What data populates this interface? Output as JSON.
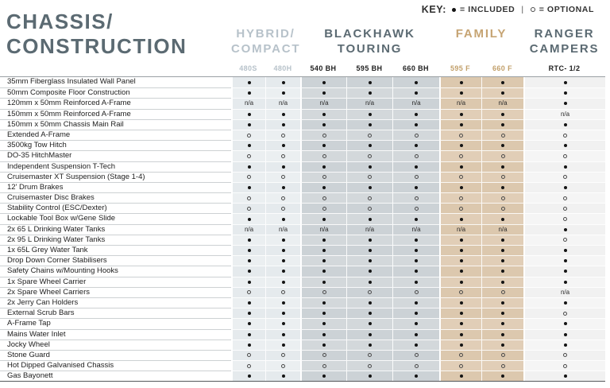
{
  "title": {
    "line1": "CHASSIS/",
    "line2": "CONSTRUCTION"
  },
  "key": {
    "label": "KEY:",
    "included_symbol": "●",
    "included_text": "= INCLUDED",
    "divider": "|",
    "optional_symbol": "○",
    "optional_text": "= OPTIONAL"
  },
  "colors": {
    "accent_slate": "#5b6a72",
    "accent_light_blue": "#b7c2ca",
    "accent_tan": "#c6a473",
    "model_dark": "#1f1f1f",
    "band_hybrid": "#e5eaed",
    "band_blackhawk": "#ccd2d6",
    "band_family": "#dcc8ae",
    "band_ranger": "#f1f1f1"
  },
  "groups": [
    {
      "id": "hybrid",
      "lines": [
        "HYBRID/",
        "COMPACT"
      ],
      "color": "#b7c2ca",
      "model_color": "#b7c2ca",
      "models": [
        "480S",
        "480H"
      ]
    },
    {
      "id": "blackhawk",
      "lines": [
        "BLACKHAWK",
        "TOURING"
      ],
      "color": "#5b6a72",
      "model_color": "#1f1f1f",
      "models": [
        "540 BH",
        "595 BH",
        "660 BH"
      ]
    },
    {
      "id": "family",
      "lines": [
        "FAMILY"
      ],
      "color": "#c6a473",
      "model_color": "#c2a06b",
      "models": [
        "595 F",
        "660 F"
      ]
    },
    {
      "id": "ranger",
      "lines": [
        "RANGER",
        "CAMPERS"
      ],
      "color": "#5b6a72",
      "model_color": "#1f1f1f",
      "models": [
        "RTC- 1/2"
      ]
    }
  ],
  "value_legend": {
    "I": "included",
    "O": "optional",
    "NA": "n/a"
  },
  "rows": [
    {
      "label": "35mm Fiberglass Insulated Wall Panel",
      "values": [
        "I",
        "I",
        "I",
        "I",
        "I",
        "I",
        "I",
        "I"
      ]
    },
    {
      "label": "50mm Composite Floor Construction",
      "values": [
        "I",
        "I",
        "I",
        "I",
        "I",
        "I",
        "I",
        "I"
      ]
    },
    {
      "label": "120mm x 50mm Reinforced A-Frame",
      "values": [
        "NA",
        "NA",
        "NA",
        "NA",
        "NA",
        "NA",
        "NA",
        "I"
      ]
    },
    {
      "label": "150mm x 50mm Reinforced A-Frame",
      "values": [
        "I",
        "I",
        "I",
        "I",
        "I",
        "I",
        "I",
        "NA"
      ]
    },
    {
      "label": "150mm x 50mm Chassis Main Rail",
      "values": [
        "I",
        "I",
        "I",
        "I",
        "I",
        "I",
        "I",
        "I"
      ]
    },
    {
      "label": "Extended A-Frame",
      "values": [
        "O",
        "O",
        "O",
        "O",
        "O",
        "O",
        "O",
        "O"
      ]
    },
    {
      "label": "3500kg Tow Hitch",
      "values": [
        "I",
        "I",
        "I",
        "I",
        "I",
        "I",
        "I",
        "I"
      ]
    },
    {
      "label": "DO-35 HitchMaster",
      "values": [
        "O",
        "O",
        "O",
        "O",
        "O",
        "O",
        "O",
        "O"
      ]
    },
    {
      "label": "Independent Suspension T-Tech",
      "values": [
        "I",
        "I",
        "I",
        "I",
        "I",
        "I",
        "I",
        "I"
      ]
    },
    {
      "label": "Cruisemaster XT Suspension (Stage 1-4)",
      "values": [
        "O",
        "O",
        "O",
        "O",
        "O",
        "O",
        "O",
        "O"
      ]
    },
    {
      "label": "12' Drum Brakes",
      "values": [
        "I",
        "I",
        "I",
        "I",
        "I",
        "I",
        "I",
        "I"
      ]
    },
    {
      "label": "Cruisemaster Disc Brakes",
      "values": [
        "O",
        "O",
        "O",
        "O",
        "O",
        "O",
        "O",
        "O"
      ]
    },
    {
      "label": "Stability Control (ESC/Dexter)",
      "values": [
        "O",
        "O",
        "O",
        "O",
        "O",
        "O",
        "O",
        "O"
      ]
    },
    {
      "label": "Lockable Tool Box w/Gene Slide",
      "values": [
        "I",
        "I",
        "I",
        "I",
        "I",
        "I",
        "I",
        "O"
      ]
    },
    {
      "label": "2x 65 L Drinking Water Tanks",
      "values": [
        "NA",
        "NA",
        "NA",
        "NA",
        "NA",
        "NA",
        "NA",
        "I"
      ]
    },
    {
      "label": "2x 95 L Drinking Water Tanks",
      "values": [
        "I",
        "I",
        "I",
        "I",
        "I",
        "I",
        "I",
        "O"
      ]
    },
    {
      "label": "1x 65L Grey Water Tank",
      "values": [
        "I",
        "I",
        "I",
        "I",
        "I",
        "I",
        "I",
        "I"
      ]
    },
    {
      "label": "Drop Down Corner Stabilisers",
      "values": [
        "I",
        "I",
        "I",
        "I",
        "I",
        "I",
        "I",
        "I"
      ]
    },
    {
      "label": "Safety Chains w/Mounting Hooks",
      "values": [
        "I",
        "I",
        "I",
        "I",
        "I",
        "I",
        "I",
        "I"
      ]
    },
    {
      "label": "1x Spare Wheel Carrier",
      "values": [
        "I",
        "I",
        "I",
        "I",
        "I",
        "I",
        "I",
        "I"
      ]
    },
    {
      "label": "2x Spare Wheel Carriers",
      "values": [
        "O",
        "O",
        "O",
        "O",
        "O",
        "O",
        "O",
        "NA"
      ]
    },
    {
      "label": "2x Jerry Can Holders",
      "values": [
        "I",
        "I",
        "I",
        "I",
        "I",
        "I",
        "I",
        "I"
      ]
    },
    {
      "label": "External Scrub Bars",
      "values": [
        "I",
        "I",
        "I",
        "I",
        "I",
        "I",
        "I",
        "O"
      ]
    },
    {
      "label": "A-Frame Tap",
      "values": [
        "I",
        "I",
        "I",
        "I",
        "I",
        "I",
        "I",
        "I"
      ]
    },
    {
      "label": "Mains Water Inlet",
      "values": [
        "I",
        "I",
        "I",
        "I",
        "I",
        "I",
        "I",
        "I"
      ]
    },
    {
      "label": "Jocky Wheel",
      "values": [
        "I",
        "I",
        "I",
        "I",
        "I",
        "I",
        "I",
        "I"
      ]
    },
    {
      "label": "Stone Guard",
      "values": [
        "O",
        "O",
        "O",
        "O",
        "O",
        "O",
        "O",
        "O"
      ]
    },
    {
      "label": "Hot Dipped Galvanised Chassis",
      "values": [
        "O",
        "O",
        "O",
        "O",
        "O",
        "O",
        "O",
        "O"
      ]
    },
    {
      "label": "Gas Bayonett",
      "values": [
        "I",
        "I",
        "I",
        "I",
        "I",
        "I",
        "I",
        "I"
      ]
    }
  ]
}
